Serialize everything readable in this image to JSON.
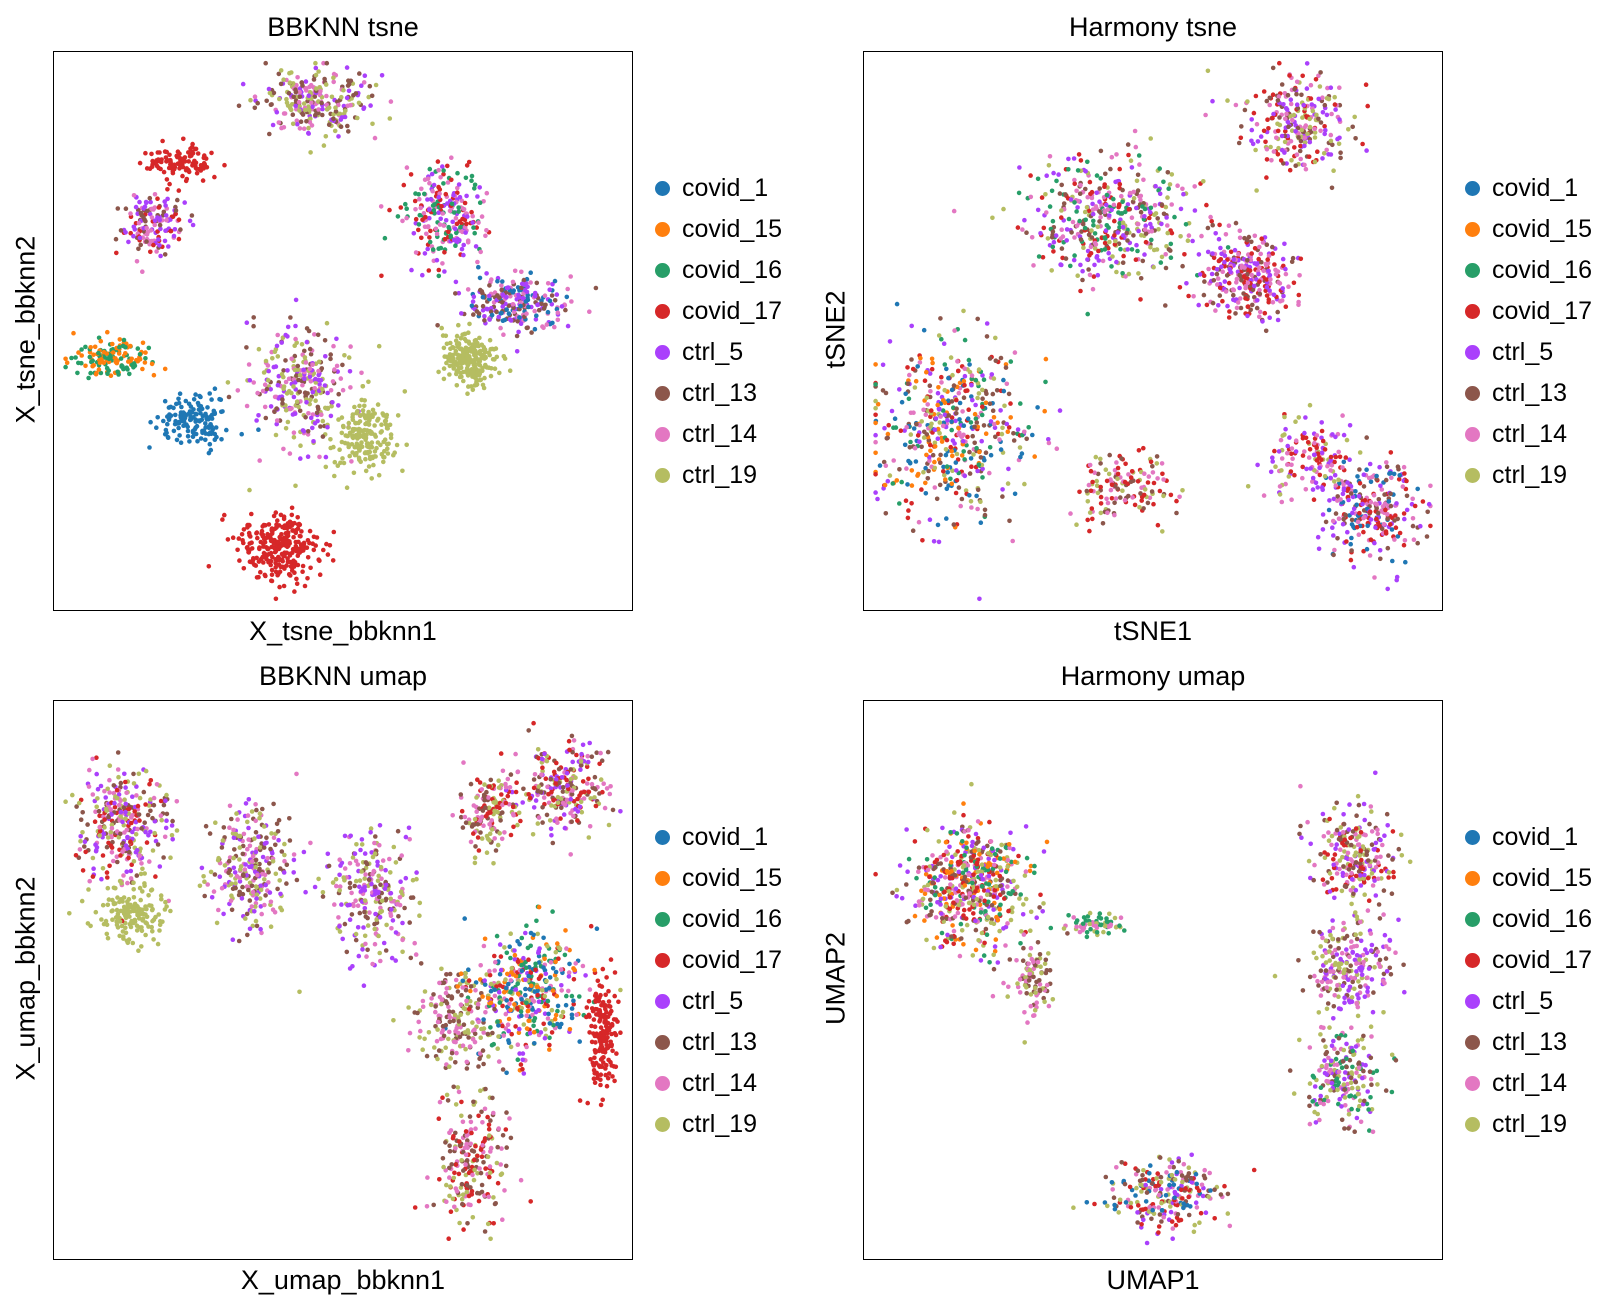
{
  "legend": {
    "items": [
      {
        "label": "covid_1",
        "color": "#1f77b4"
      },
      {
        "label": "covid_15",
        "color": "#ff7f0e"
      },
      {
        "label": "covid_16",
        "color": "#279e68"
      },
      {
        "label": "covid_17",
        "color": "#d62728"
      },
      {
        "label": "ctrl_5",
        "color": "#aa40fc"
      },
      {
        "label": "ctrl_13",
        "color": "#8c564b"
      },
      {
        "label": "ctrl_14",
        "color": "#e377c2"
      },
      {
        "label": "ctrl_19",
        "color": "#b5bd61"
      }
    ]
  },
  "chart_data": [
    {
      "type": "scatter",
      "title": "BBKNN tsne",
      "xlabel": "X_tsne_bbknn1",
      "ylabel": "X_tsne_bbknn2",
      "grid": false,
      "ticks": false,
      "legend_placement": "right",
      "clusters": [
        {
          "center": [
            0.45,
            0.09
          ],
          "spread": [
            0.08,
            0.05
          ],
          "n": 260,
          "mix": [
            "ctrl_19",
            "ctrl_13",
            "ctrl_14",
            "ctrl_5"
          ]
        },
        {
          "center": [
            0.22,
            0.2
          ],
          "spread": [
            0.05,
            0.03
          ],
          "n": 110,
          "mix": [
            "covid_17"
          ]
        },
        {
          "center": [
            0.17,
            0.31
          ],
          "spread": [
            0.05,
            0.05
          ],
          "n": 150,
          "mix": [
            "ctrl_5",
            "ctrl_14",
            "ctrl_13",
            "covid_17"
          ]
        },
        {
          "center": [
            0.68,
            0.29
          ],
          "spread": [
            0.06,
            0.07
          ],
          "n": 260,
          "mix": [
            "ctrl_5",
            "covid_17",
            "ctrl_14",
            "covid_16"
          ]
        },
        {
          "center": [
            0.8,
            0.45
          ],
          "spread": [
            0.07,
            0.04
          ],
          "n": 250,
          "mix": [
            "ctrl_13",
            "ctrl_5",
            "covid_1",
            "ctrl_14"
          ]
        },
        {
          "center": [
            0.1,
            0.55
          ],
          "spread": [
            0.06,
            0.03
          ],
          "n": 150,
          "mix": [
            "covid_15",
            "covid_16"
          ]
        },
        {
          "center": [
            0.24,
            0.66
          ],
          "spread": [
            0.05,
            0.04
          ],
          "n": 150,
          "mix": [
            "covid_1"
          ]
        },
        {
          "center": [
            0.43,
            0.6
          ],
          "spread": [
            0.07,
            0.09
          ],
          "n": 300,
          "mix": [
            "ctrl_14",
            "ctrl_13",
            "ctrl_5",
            "ctrl_19"
          ]
        },
        {
          "center": [
            0.72,
            0.55
          ],
          "spread": [
            0.04,
            0.04
          ],
          "n": 220,
          "mix": [
            "ctrl_19"
          ]
        },
        {
          "center": [
            0.54,
            0.69
          ],
          "spread": [
            0.04,
            0.06
          ],
          "n": 190,
          "mix": [
            "ctrl_19"
          ]
        },
        {
          "center": [
            0.39,
            0.89
          ],
          "spread": [
            0.06,
            0.05
          ],
          "n": 280,
          "mix": [
            "covid_17"
          ]
        }
      ]
    },
    {
      "type": "scatter",
      "title": "Harmony tsne",
      "xlabel": "tSNE1",
      "ylabel": "tSNE2",
      "grid": false,
      "ticks": false,
      "legend_placement": "right",
      "clusters": [
        {
          "center": [
            0.75,
            0.13
          ],
          "spread": [
            0.08,
            0.07
          ],
          "n": 260,
          "mix": [
            "ctrl_19",
            "ctrl_14",
            "ctrl_5",
            "covid_17",
            "ctrl_13"
          ]
        },
        {
          "center": [
            0.42,
            0.3
          ],
          "spread": [
            0.12,
            0.09
          ],
          "n": 460,
          "mix": [
            "ctrl_19",
            "ctrl_14",
            "ctrl_5",
            "covid_17",
            "ctrl_13",
            "covid_16"
          ]
        },
        {
          "center": [
            0.66,
            0.4
          ],
          "spread": [
            0.07,
            0.06
          ],
          "n": 300,
          "mix": [
            "ctrl_5",
            "ctrl_14",
            "ctrl_13",
            "covid_17"
          ]
        },
        {
          "center": [
            0.15,
            0.68
          ],
          "spread": [
            0.11,
            0.13
          ],
          "n": 520,
          "mix": [
            "covid_17",
            "ctrl_19",
            "ctrl_14",
            "ctrl_5",
            "covid_1",
            "covid_16",
            "covid_15",
            "ctrl_13"
          ]
        },
        {
          "center": [
            0.45,
            0.78
          ],
          "spread": [
            0.07,
            0.05
          ],
          "n": 140,
          "mix": [
            "ctrl_19",
            "ctrl_14",
            "covid_17",
            "ctrl_13"
          ]
        },
        {
          "center": [
            0.77,
            0.73
          ],
          "spread": [
            0.06,
            0.06
          ],
          "n": 140,
          "mix": [
            "ctrl_14",
            "ctrl_19",
            "covid_17",
            "ctrl_5"
          ]
        },
        {
          "center": [
            0.88,
            0.82
          ],
          "spread": [
            0.07,
            0.07
          ],
          "n": 280,
          "mix": [
            "covid_17",
            "ctrl_5",
            "ctrl_14",
            "ctrl_13",
            "covid_1"
          ]
        }
      ]
    },
    {
      "type": "scatter",
      "title": "BBKNN umap",
      "xlabel": "X_umap_bbknn1",
      "ylabel": "X_umap_bbknn2",
      "grid": false,
      "ticks": false,
      "legend_placement": "right",
      "clusters": [
        {
          "center": [
            0.12,
            0.22
          ],
          "spread": [
            0.07,
            0.09
          ],
          "n": 320,
          "mix": [
            "ctrl_14",
            "ctrl_13",
            "ctrl_19",
            "covid_17",
            "ctrl_5"
          ]
        },
        {
          "center": [
            0.13,
            0.38
          ],
          "spread": [
            0.05,
            0.04
          ],
          "n": 150,
          "mix": [
            "ctrl_19"
          ]
        },
        {
          "center": [
            0.34,
            0.3
          ],
          "spread": [
            0.06,
            0.09
          ],
          "n": 280,
          "mix": [
            "ctrl_5",
            "ctrl_14",
            "ctrl_13",
            "ctrl_19"
          ]
        },
        {
          "center": [
            0.55,
            0.35
          ],
          "spread": [
            0.06,
            0.1
          ],
          "n": 250,
          "mix": [
            "ctrl_13",
            "ctrl_14",
            "ctrl_19",
            "ctrl_5"
          ]
        },
        {
          "center": [
            0.88,
            0.16
          ],
          "spread": [
            0.06,
            0.07
          ],
          "n": 260,
          "mix": [
            "ctrl_5",
            "covid_17",
            "ctrl_14",
            "ctrl_13",
            "ctrl_19"
          ]
        },
        {
          "center": [
            0.75,
            0.2
          ],
          "spread": [
            0.04,
            0.06
          ],
          "n": 150,
          "mix": [
            "ctrl_19",
            "ctrl_13",
            "ctrl_14",
            "covid_17"
          ]
        },
        {
          "center": [
            0.82,
            0.52
          ],
          "spread": [
            0.08,
            0.09
          ],
          "n": 420,
          "mix": [
            "ctrl_19",
            "covid_16",
            "covid_15",
            "covid_1",
            "ctrl_14",
            "ctrl_5",
            "covid_17"
          ]
        },
        {
          "center": [
            0.95,
            0.6
          ],
          "spread": [
            0.02,
            0.09
          ],
          "n": 170,
          "mix": [
            "covid_17"
          ]
        },
        {
          "center": [
            0.7,
            0.58
          ],
          "spread": [
            0.06,
            0.08
          ],
          "n": 200,
          "mix": [
            "ctrl_14",
            "ctrl_13",
            "ctrl_19"
          ]
        },
        {
          "center": [
            0.72,
            0.83
          ],
          "spread": [
            0.05,
            0.1
          ],
          "n": 220,
          "mix": [
            "ctrl_13",
            "ctrl_14",
            "ctrl_19",
            "covid_17"
          ]
        }
      ]
    },
    {
      "type": "scatter",
      "title": "Harmony umap",
      "xlabel": "UMAP1",
      "ylabel": "UMAP2",
      "grid": false,
      "ticks": false,
      "legend_placement": "right",
      "clusters": [
        {
          "center": [
            0.18,
            0.33
          ],
          "spread": [
            0.09,
            0.09
          ],
          "n": 560,
          "mix": [
            "ctrl_19",
            "covid_17",
            "ctrl_14",
            "ctrl_5",
            "ctrl_13",
            "covid_15",
            "covid_16"
          ]
        },
        {
          "center": [
            0.29,
            0.5
          ],
          "spread": [
            0.03,
            0.05
          ],
          "n": 100,
          "mix": [
            "ctrl_19",
            "ctrl_13",
            "ctrl_14"
          ]
        },
        {
          "center": [
            0.4,
            0.4
          ],
          "spread": [
            0.04,
            0.02
          ],
          "n": 60,
          "mix": [
            "ctrl_19",
            "covid_16",
            "ctrl_14"
          ]
        },
        {
          "center": [
            0.85,
            0.28
          ],
          "spread": [
            0.06,
            0.07
          ],
          "n": 240,
          "mix": [
            "ctrl_19",
            "ctrl_5",
            "ctrl_14",
            "covid_17",
            "ctrl_13"
          ]
        },
        {
          "center": [
            0.84,
            0.48
          ],
          "spread": [
            0.06,
            0.08
          ],
          "n": 240,
          "mix": [
            "ctrl_5",
            "ctrl_19",
            "ctrl_14",
            "ctrl_13"
          ]
        },
        {
          "center": [
            0.83,
            0.68
          ],
          "spread": [
            0.05,
            0.07
          ],
          "n": 200,
          "mix": [
            "ctrl_13",
            "ctrl_19",
            "ctrl_14",
            "covid_16",
            "ctrl_5"
          ]
        },
        {
          "center": [
            0.53,
            0.88
          ],
          "spread": [
            0.08,
            0.05
          ],
          "n": 240,
          "mix": [
            "ctrl_14",
            "ctrl_5",
            "ctrl_13",
            "covid_1",
            "ctrl_19",
            "covid_17"
          ]
        }
      ]
    }
  ]
}
